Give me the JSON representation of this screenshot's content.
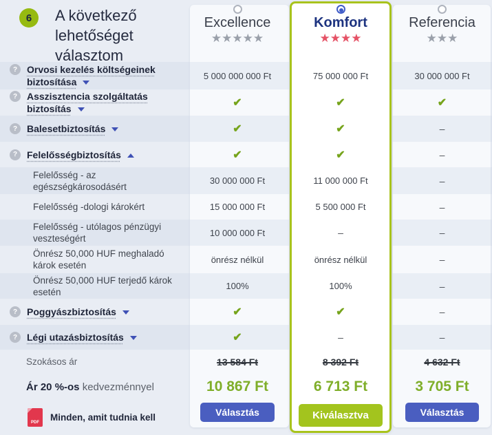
{
  "step": {
    "number": "6",
    "title": "A következő lehetőséget választom"
  },
  "plans": [
    {
      "name": "Excellence",
      "rating": 5,
      "stars": "★★★★★",
      "star_color": "#9aa0aa",
      "selected": false,
      "limit_note": "",
      "regular_price": "13 584 Ft",
      "discounted_price": "10 867 Ft",
      "button_label": "Választás"
    },
    {
      "name": "Komfort",
      "rating": 4,
      "stars": "★★★★",
      "star_color": "#e55266",
      "selected": true,
      "limit_note": "",
      "regular_price": "8 392 Ft",
      "discounted_price": "6 713 Ft",
      "button_label": "Kiválasztva"
    },
    {
      "name": "Referencia",
      "rating": 3,
      "stars": "★★★",
      "star_color": "#9aa0aa",
      "selected": false,
      "limit_note": "",
      "regular_price": "4 632 Ft",
      "discounted_price": "3 705 Ft",
      "button_label": "Választás"
    }
  ],
  "rows": [
    {
      "label": "Orvosi kezelés költségeinek biztosítása",
      "level": "main",
      "chevron": "down",
      "values": [
        "5 000 000 000 Ft",
        "75 000 000 Ft",
        "30 000 000 Ft"
      ]
    },
    {
      "label": "Asszisztencia szolgáltatás biztosítás",
      "level": "main",
      "chevron": "down",
      "values": [
        "✔",
        "✔",
        "✔"
      ]
    },
    {
      "label": "Balesetbiztosítás",
      "level": "main",
      "chevron": "down",
      "values": [
        "✔",
        "✔",
        "–"
      ]
    },
    {
      "label": "Felelősségbiztosítás",
      "level": "main",
      "chevron": "up",
      "values": [
        "✔",
        "✔",
        "–"
      ]
    },
    {
      "label": "Felelősség - az egészségkárosodásért",
      "level": "sub",
      "values": [
        "30 000 000 Ft",
        "11 000 000 Ft",
        "–"
      ]
    },
    {
      "label": "Felelősség -dologi károkért",
      "level": "sub",
      "values": [
        "15 000 000 Ft",
        "5 500 000 Ft",
        "–"
      ]
    },
    {
      "label": "Felelősség - utólagos pénzügyi veszteségért",
      "level": "sub",
      "values": [
        "10 000 000 Ft",
        "–",
        "–"
      ]
    },
    {
      "label": "Önrész 50,000 HUF meghaladó károk esetén",
      "level": "sub",
      "values": [
        "önrész nélkül",
        "önrész nélkül",
        "–"
      ]
    },
    {
      "label": "Önrész 50,000 HUF terjedő károk esetén",
      "level": "sub",
      "values": [
        "100%",
        "100%",
        "–"
      ]
    },
    {
      "label": "Poggyászbiztosítás",
      "level": "main",
      "chevron": "down",
      "values": [
        "✔",
        "✔",
        "–"
      ]
    },
    {
      "label": "Légi utazásbiztosítás",
      "level": "main",
      "chevron": "down",
      "values": [
        "✔",
        "–",
        "–"
      ]
    }
  ],
  "pricing": {
    "regular_price_label": "Szokásos ár",
    "discount_label_strong": "Ár 20 %-os",
    "discount_label_rest": " kedvezménnyel"
  },
  "footer": {
    "pdf_icon": "PDF",
    "pdf_link_label": "Minden, amit tudnia kell"
  },
  "colors": {
    "page_bg": "#e9edf4",
    "card_bg": "#f7f9fc",
    "selected_border": "#a8c31c",
    "step_circle": "#96ba11",
    "check_green": "#76a41c",
    "price_green": "#7fae29",
    "button_blue": "#4a5ec0",
    "button_green": "#a3c41e",
    "komfort_name_blue": "#1d3380",
    "star_red": "#e55266",
    "star_gray": "#9aa0aa",
    "chevron_blue": "#3f51b5"
  }
}
